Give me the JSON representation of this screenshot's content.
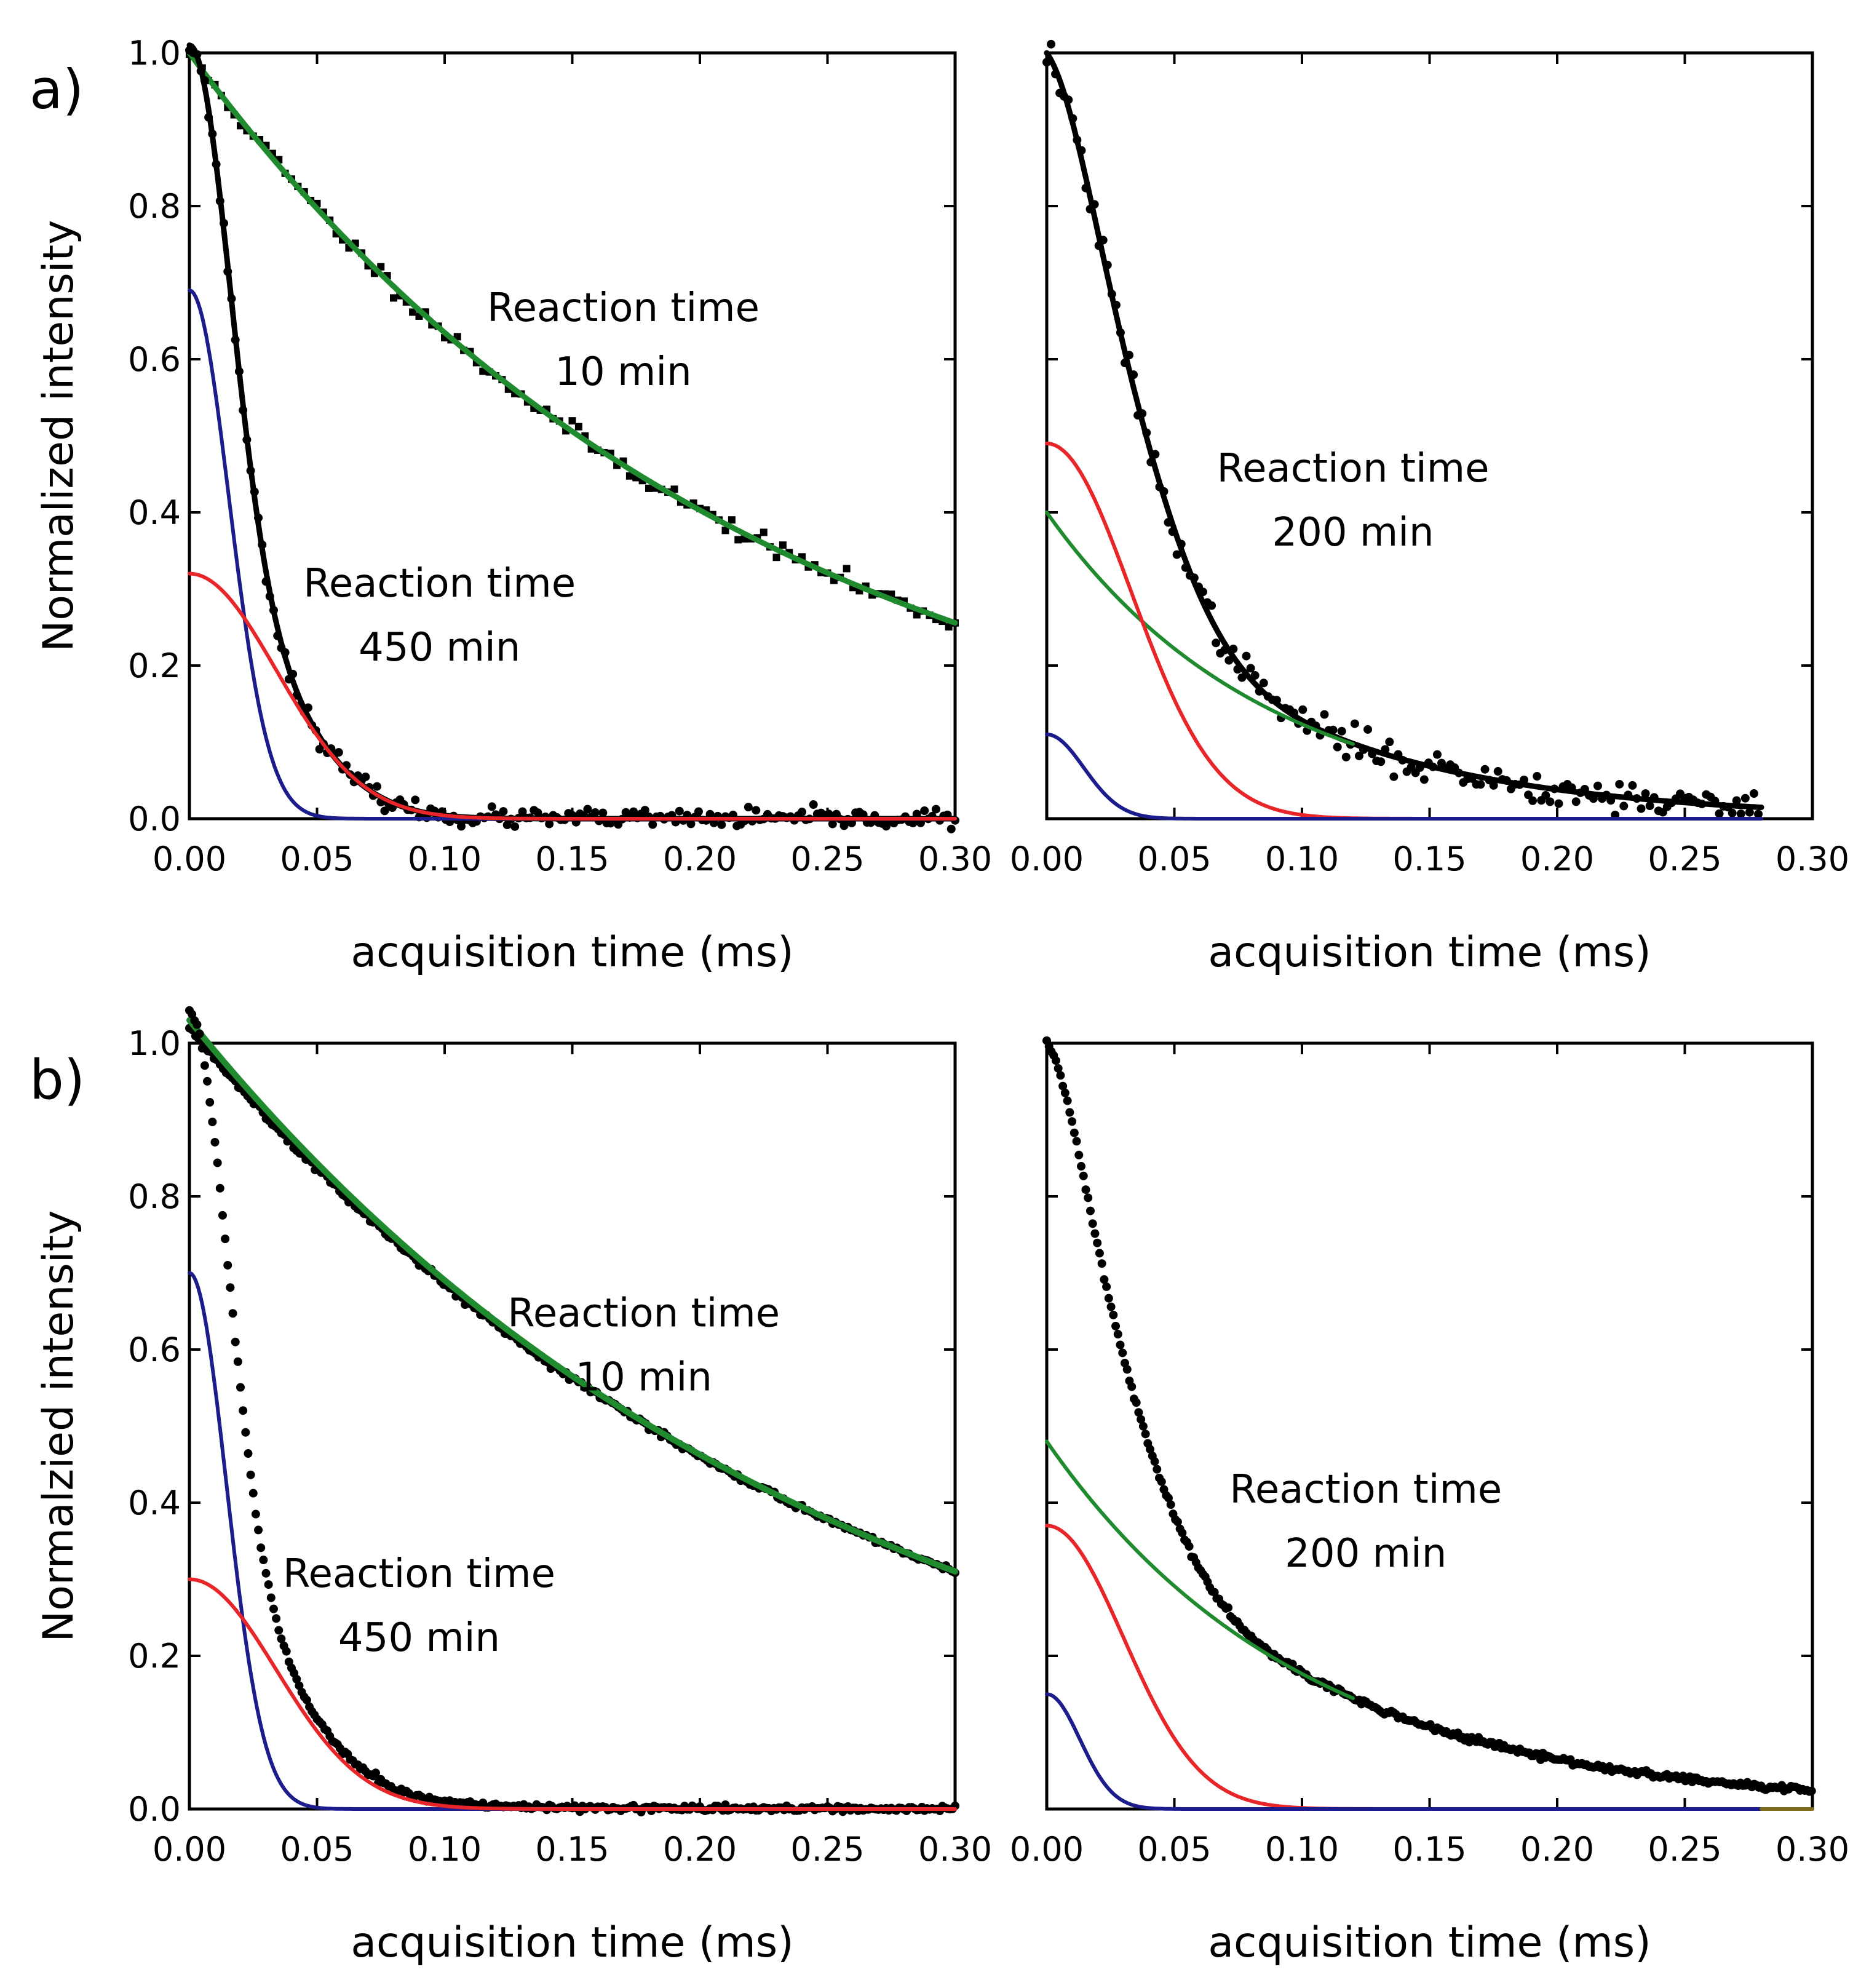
{
  "chart_data": [
    {
      "panel_label": "a)",
      "type": "scatter",
      "xlabel": "acquisition time (ms)",
      "ylabel": "Normalized intensity",
      "xlim": [
        0,
        0.3
      ],
      "ylim": [
        0,
        1.0
      ],
      "xticks": [
        "0.00",
        "0.05",
        "0.10",
        "0.15",
        "0.20",
        "0.25",
        "0.30"
      ],
      "yticks": [
        "0.0",
        "0.2",
        "0.4",
        "0.6",
        "0.8",
        "1.0"
      ],
      "annotations": [
        {
          "line1": "Reaction time",
          "line2": "10 min",
          "at": [
            0.17,
            0.65
          ]
        },
        {
          "line1": "Reaction time",
          "line2": "450 min",
          "at": [
            0.098,
            0.29
          ]
        }
      ],
      "series": [
        {
          "name": "data 10 min",
          "kind": "points",
          "marker": "square",
          "color": "#000000",
          "model": "exp",
          "A": 1.0,
          "T": 0.22,
          "noise": 0.006,
          "step": 0.0025,
          "seed": 11
        },
        {
          "name": "fit 10 min",
          "kind": "line",
          "color": "#1f8a2e",
          "width": 9,
          "model": "exp",
          "A": 1.0,
          "T": 0.22
        },
        {
          "name": "data 450 min",
          "kind": "points",
          "marker": "circle",
          "color": "#000000",
          "model": "sum",
          "components": [
            {
              "model": "gauss",
              "A": 0.69,
              "s": 0.0155
            },
            {
              "model": "gauss",
              "A": 0.32,
              "s": 0.034
            }
          ],
          "noise": 0.006,
          "step": 0.0015,
          "seed": 23
        },
        {
          "name": "fit 450 min",
          "kind": "line",
          "color": "#000000",
          "width": 9,
          "model": "sum",
          "components": [
            {
              "model": "gauss",
              "A": 0.69,
              "s": 0.0155
            },
            {
              "model": "gauss",
              "A": 0.32,
              "s": 0.034
            }
          ]
        },
        {
          "name": "component blue",
          "kind": "line",
          "color": "#1c1c8c",
          "width": 6,
          "model": "gauss",
          "A": 0.69,
          "s": 0.0155
        },
        {
          "name": "component red",
          "kind": "line",
          "color": "#e8262a",
          "width": 6,
          "model": "gauss",
          "A": 0.32,
          "s": 0.034
        }
      ]
    },
    {
      "panel_label": "",
      "type": "scatter",
      "xlabel": "acquisition time (ms)",
      "ylabel": "",
      "xlim": [
        0,
        0.3
      ],
      "ylim": [
        0,
        1.0
      ],
      "xticks": [
        "0.00",
        "0.05",
        "0.10",
        "0.15",
        "0.20",
        "0.25",
        "0.30"
      ],
      "yticks": [],
      "annotations": [
        {
          "line1": "Reaction time",
          "line2": "200 min",
          "at": [
            0.12,
            0.44
          ]
        }
      ],
      "series": [
        {
          "name": "data 200 min",
          "kind": "points",
          "marker": "circle",
          "color": "#000000",
          "model": "sum",
          "components": [
            {
              "model": "gauss",
              "A": 0.11,
              "s": 0.0145
            },
            {
              "model": "gauss",
              "A": 0.49,
              "s": 0.033
            },
            {
              "model": "exp",
              "A": 0.4,
              "T": 0.085
            }
          ],
          "noise": 0.011,
          "step": 0.0017,
          "seed": 37,
          "xmax": 0.28
        },
        {
          "name": "fit 200 min",
          "kind": "line",
          "color": "#000000",
          "width": 9,
          "model": "sum",
          "components": [
            {
              "model": "gauss",
              "A": 0.11,
              "s": 0.0145
            },
            {
              "model": "gauss",
              "A": 0.49,
              "s": 0.033
            },
            {
              "model": "exp",
              "A": 0.4,
              "T": 0.085
            }
          ],
          "xmax": 0.28
        },
        {
          "name": "component green",
          "kind": "line",
          "color": "#1f8a2e",
          "width": 6,
          "model": "exp",
          "A": 0.4,
          "T": 0.085,
          "xmax": 0.12
        },
        {
          "name": "component red",
          "kind": "line",
          "color": "#e8262a",
          "width": 6,
          "model": "gauss",
          "A": 0.49,
          "s": 0.033,
          "xmax": 0.28
        },
        {
          "name": "component blue",
          "kind": "line",
          "color": "#1c1c8c",
          "width": 6,
          "model": "gauss",
          "A": 0.11,
          "s": 0.0145,
          "xmax": 0.28
        }
      ]
    },
    {
      "panel_label": "b)",
      "type": "scatter",
      "xlabel": "acquisition time (ms)",
      "ylabel": "Normalzied intensity",
      "xlim": [
        0,
        0.3
      ],
      "ylim": [
        0,
        1.0
      ],
      "xticks": [
        "0.00",
        "0.05",
        "0.10",
        "0.15",
        "0.20",
        "0.25",
        "0.30"
      ],
      "yticks": [
        "0.0",
        "0.2",
        "0.4",
        "0.6",
        "0.8",
        "1.0"
      ],
      "annotations": [
        {
          "line1": "Reaction time",
          "line2": "10 min",
          "at": [
            0.178,
            0.63
          ]
        },
        {
          "line1": "Reaction time",
          "line2": "450 min",
          "at": [
            0.09,
            0.29
          ]
        }
      ],
      "series": [
        {
          "name": "data 10 min",
          "kind": "points",
          "marker": "circle",
          "color": "#000000",
          "model": "exp",
          "A": 1.02,
          "T": 0.252,
          "noise": 0.002,
          "step": 0.0012,
          "seed": 5
        },
        {
          "name": "fit 10 min",
          "kind": "line",
          "color": "#1f8a2e",
          "width": 10,
          "model": "exp",
          "A": 1.03,
          "T": 0.25
        },
        {
          "name": "data 450 min",
          "kind": "points",
          "marker": "circle",
          "color": "#000000",
          "model": "sum",
          "components": [
            {
              "model": "gauss",
              "A": 0.7,
              "s": 0.0145
            },
            {
              "model": "gauss",
              "A": 0.3,
              "s": 0.034
            },
            {
              "model": "exp",
              "A": 0.04,
              "T": 0.05
            }
          ],
          "noise": 0.002,
          "step": 0.001,
          "seed": 9
        },
        {
          "name": "component blue",
          "kind": "line",
          "color": "#1c1c8c",
          "width": 6,
          "model": "gauss",
          "A": 0.7,
          "s": 0.0145
        },
        {
          "name": "component red",
          "kind": "line",
          "color": "#e8262a",
          "width": 6,
          "model": "gauss",
          "A": 0.3,
          "s": 0.034
        }
      ]
    },
    {
      "panel_label": "",
      "type": "scatter",
      "xlabel": "acquisition time (ms)",
      "ylabel": "",
      "xlim": [
        0,
        0.3
      ],
      "ylim": [
        0,
        1.0
      ],
      "xticks": [
        "0.00",
        "0.05",
        "0.10",
        "0.15",
        "0.20",
        "0.25",
        "0.30"
      ],
      "yticks": [],
      "annotations": [
        {
          "line1": "Reaction time",
          "line2": "200 min",
          "at": [
            0.125,
            0.4
          ]
        }
      ],
      "series": [
        {
          "name": "data 200 min",
          "kind": "points",
          "marker": "circle",
          "color": "#000000",
          "model": "sum",
          "components": [
            {
              "model": "gauss",
              "A": 0.15,
              "s": 0.013
            },
            {
              "model": "gauss",
              "A": 0.37,
              "s": 0.03
            },
            {
              "model": "exp",
              "A": 0.48,
              "T": 0.1
            }
          ],
          "noise": 0.002,
          "step": 0.0009,
          "seed": 41
        },
        {
          "name": "component green",
          "kind": "line",
          "color": "#1f8a2e",
          "width": 6,
          "model": "exp",
          "A": 0.48,
          "T": 0.1,
          "xmax": 0.12
        },
        {
          "name": "component red",
          "kind": "line",
          "color": "#e8262a",
          "width": 6,
          "model": "gauss",
          "A": 0.37,
          "s": 0.03,
          "xmax": 0.28
        },
        {
          "name": "component blue",
          "kind": "line",
          "color": "#1c1c8c",
          "width": 6,
          "model": "gauss",
          "A": 0.15,
          "s": 0.013,
          "xmax": 0.28
        },
        {
          "name": "baseline tail",
          "kind": "line",
          "color": "#7a6a1a",
          "width": 6,
          "model": "const",
          "A": 0.0,
          "xmin": 0.28,
          "xmax": 0.3
        }
      ]
    }
  ]
}
